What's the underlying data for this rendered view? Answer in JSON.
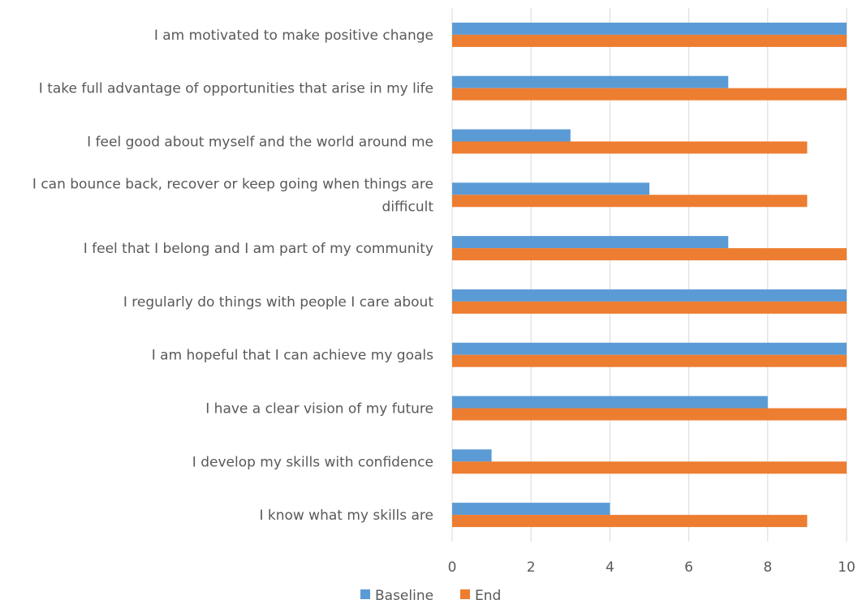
{
  "chart_data": {
    "type": "bar",
    "orientation": "horizontal",
    "categories": [
      "I am motivated to make positive change",
      "I take full advantage of opportunities that arise in my life",
      "I feel good about myself and the world around me",
      "I can bounce back, recover or keep going when things are difficult",
      "I feel that I belong and I am part of my community",
      "I regularly do things with people I care about",
      "I am hopeful that I can achieve my goals",
      "I have a clear vision of my future",
      "I develop my skills with confidence",
      "I know what my skills are"
    ],
    "series": [
      {
        "name": "Baseline",
        "color": "#5B9BD5",
        "values": [
          10,
          7,
          3,
          5,
          7,
          10,
          10,
          8,
          1,
          4
        ]
      },
      {
        "name": "End",
        "color": "#ED7D31",
        "values": [
          10,
          10,
          9,
          9,
          10,
          10,
          10,
          10,
          10,
          9
        ]
      }
    ],
    "xlim": [
      0,
      10
    ],
    "x_ticks": [
      "0",
      "2",
      "4",
      "6",
      "8",
      "10"
    ],
    "grid": true,
    "legend_position": "bottom"
  }
}
